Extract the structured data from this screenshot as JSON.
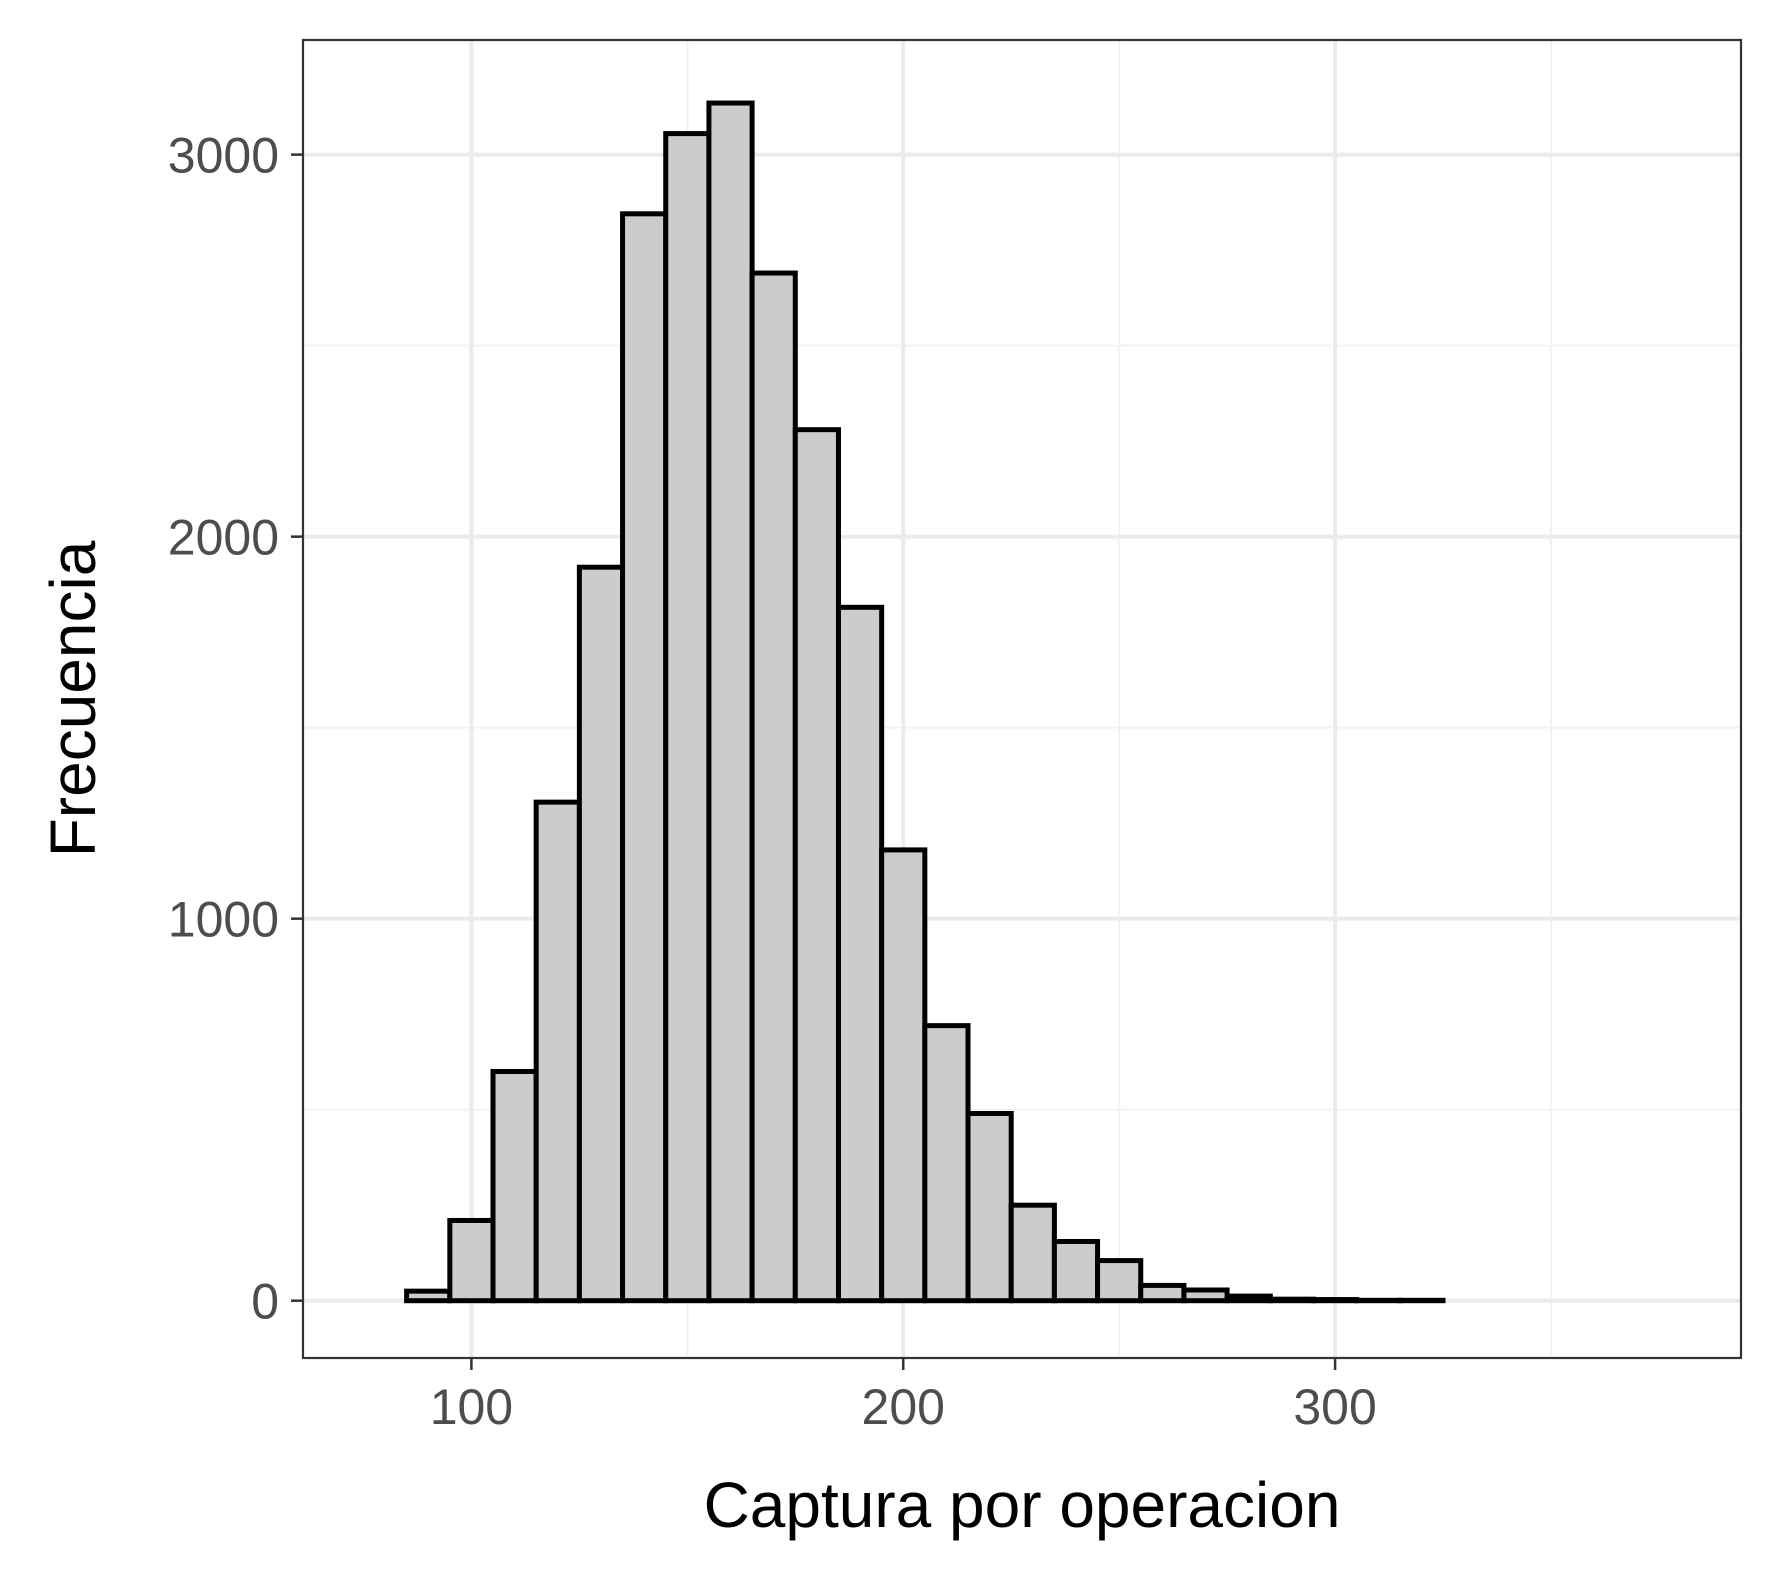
{
  "chart_data": {
    "type": "bar",
    "subtype": "histogram",
    "xlabel": "Captura por operacion",
    "ylabel": "Frecuencia",
    "xlim": [
      61,
      394
    ],
    "ylim": [
      -150,
      3300
    ],
    "x_ticks": [
      100,
      200,
      300
    ],
    "y_ticks": [
      0,
      1000,
      2000,
      3000
    ],
    "x_minor_gridlines": [
      150,
      250,
      350
    ],
    "y_minor_gridlines": [
      500,
      1500,
      2500
    ],
    "grid": true,
    "legend": "none",
    "bin_width": 10,
    "bins": [
      {
        "x0": 75,
        "x1": 85,
        "count": 0
      },
      {
        "x0": 85,
        "x1": 95,
        "count": 25
      },
      {
        "x0": 95,
        "x1": 105,
        "count": 210
      },
      {
        "x0": 105,
        "x1": 115,
        "count": 600
      },
      {
        "x0": 115,
        "x1": 125,
        "count": 1305
      },
      {
        "x0": 125,
        "x1": 135,
        "count": 1920
      },
      {
        "x0": 135,
        "x1": 145,
        "count": 2845
      },
      {
        "x0": 145,
        "x1": 155,
        "count": 3055
      },
      {
        "x0": 155,
        "x1": 165,
        "count": 3135
      },
      {
        "x0": 165,
        "x1": 175,
        "count": 2690
      },
      {
        "x0": 175,
        "x1": 185,
        "count": 2280
      },
      {
        "x0": 185,
        "x1": 195,
        "count": 1815
      },
      {
        "x0": 195,
        "x1": 205,
        "count": 1180
      },
      {
        "x0": 205,
        "x1": 215,
        "count": 720
      },
      {
        "x0": 215,
        "x1": 225,
        "count": 490
      },
      {
        "x0": 225,
        "x1": 235,
        "count": 250
      },
      {
        "x0": 235,
        "x1": 245,
        "count": 155
      },
      {
        "x0": 245,
        "x1": 255,
        "count": 105
      },
      {
        "x0": 255,
        "x1": 265,
        "count": 40
      },
      {
        "x0": 265,
        "x1": 275,
        "count": 28
      },
      {
        "x0": 275,
        "x1": 285,
        "count": 12
      },
      {
        "x0": 285,
        "x1": 295,
        "count": 4
      },
      {
        "x0": 295,
        "x1": 305,
        "count": 3
      },
      {
        "x0": 305,
        "x1": 315,
        "count": 1
      },
      {
        "x0": 315,
        "x1": 325,
        "count": 1
      },
      {
        "x0": 325,
        "x1": 335,
        "count": 0
      },
      {
        "x0": 335,
        "x1": 345,
        "count": 0
      },
      {
        "x0": 345,
        "x1": 355,
        "count": 0
      },
      {
        "x0": 355,
        "x1": 365,
        "count": 0
      },
      {
        "x0": 365,
        "x1": 375,
        "count": 0
      }
    ],
    "colors": {
      "bar_fill": "#cccccc",
      "bar_stroke": "#000000",
      "grid_major": "#ebebeb",
      "grid_minor": "#f2f2f2",
      "panel_border": "#333333",
      "tick_label": "#4d4d4d"
    }
  }
}
